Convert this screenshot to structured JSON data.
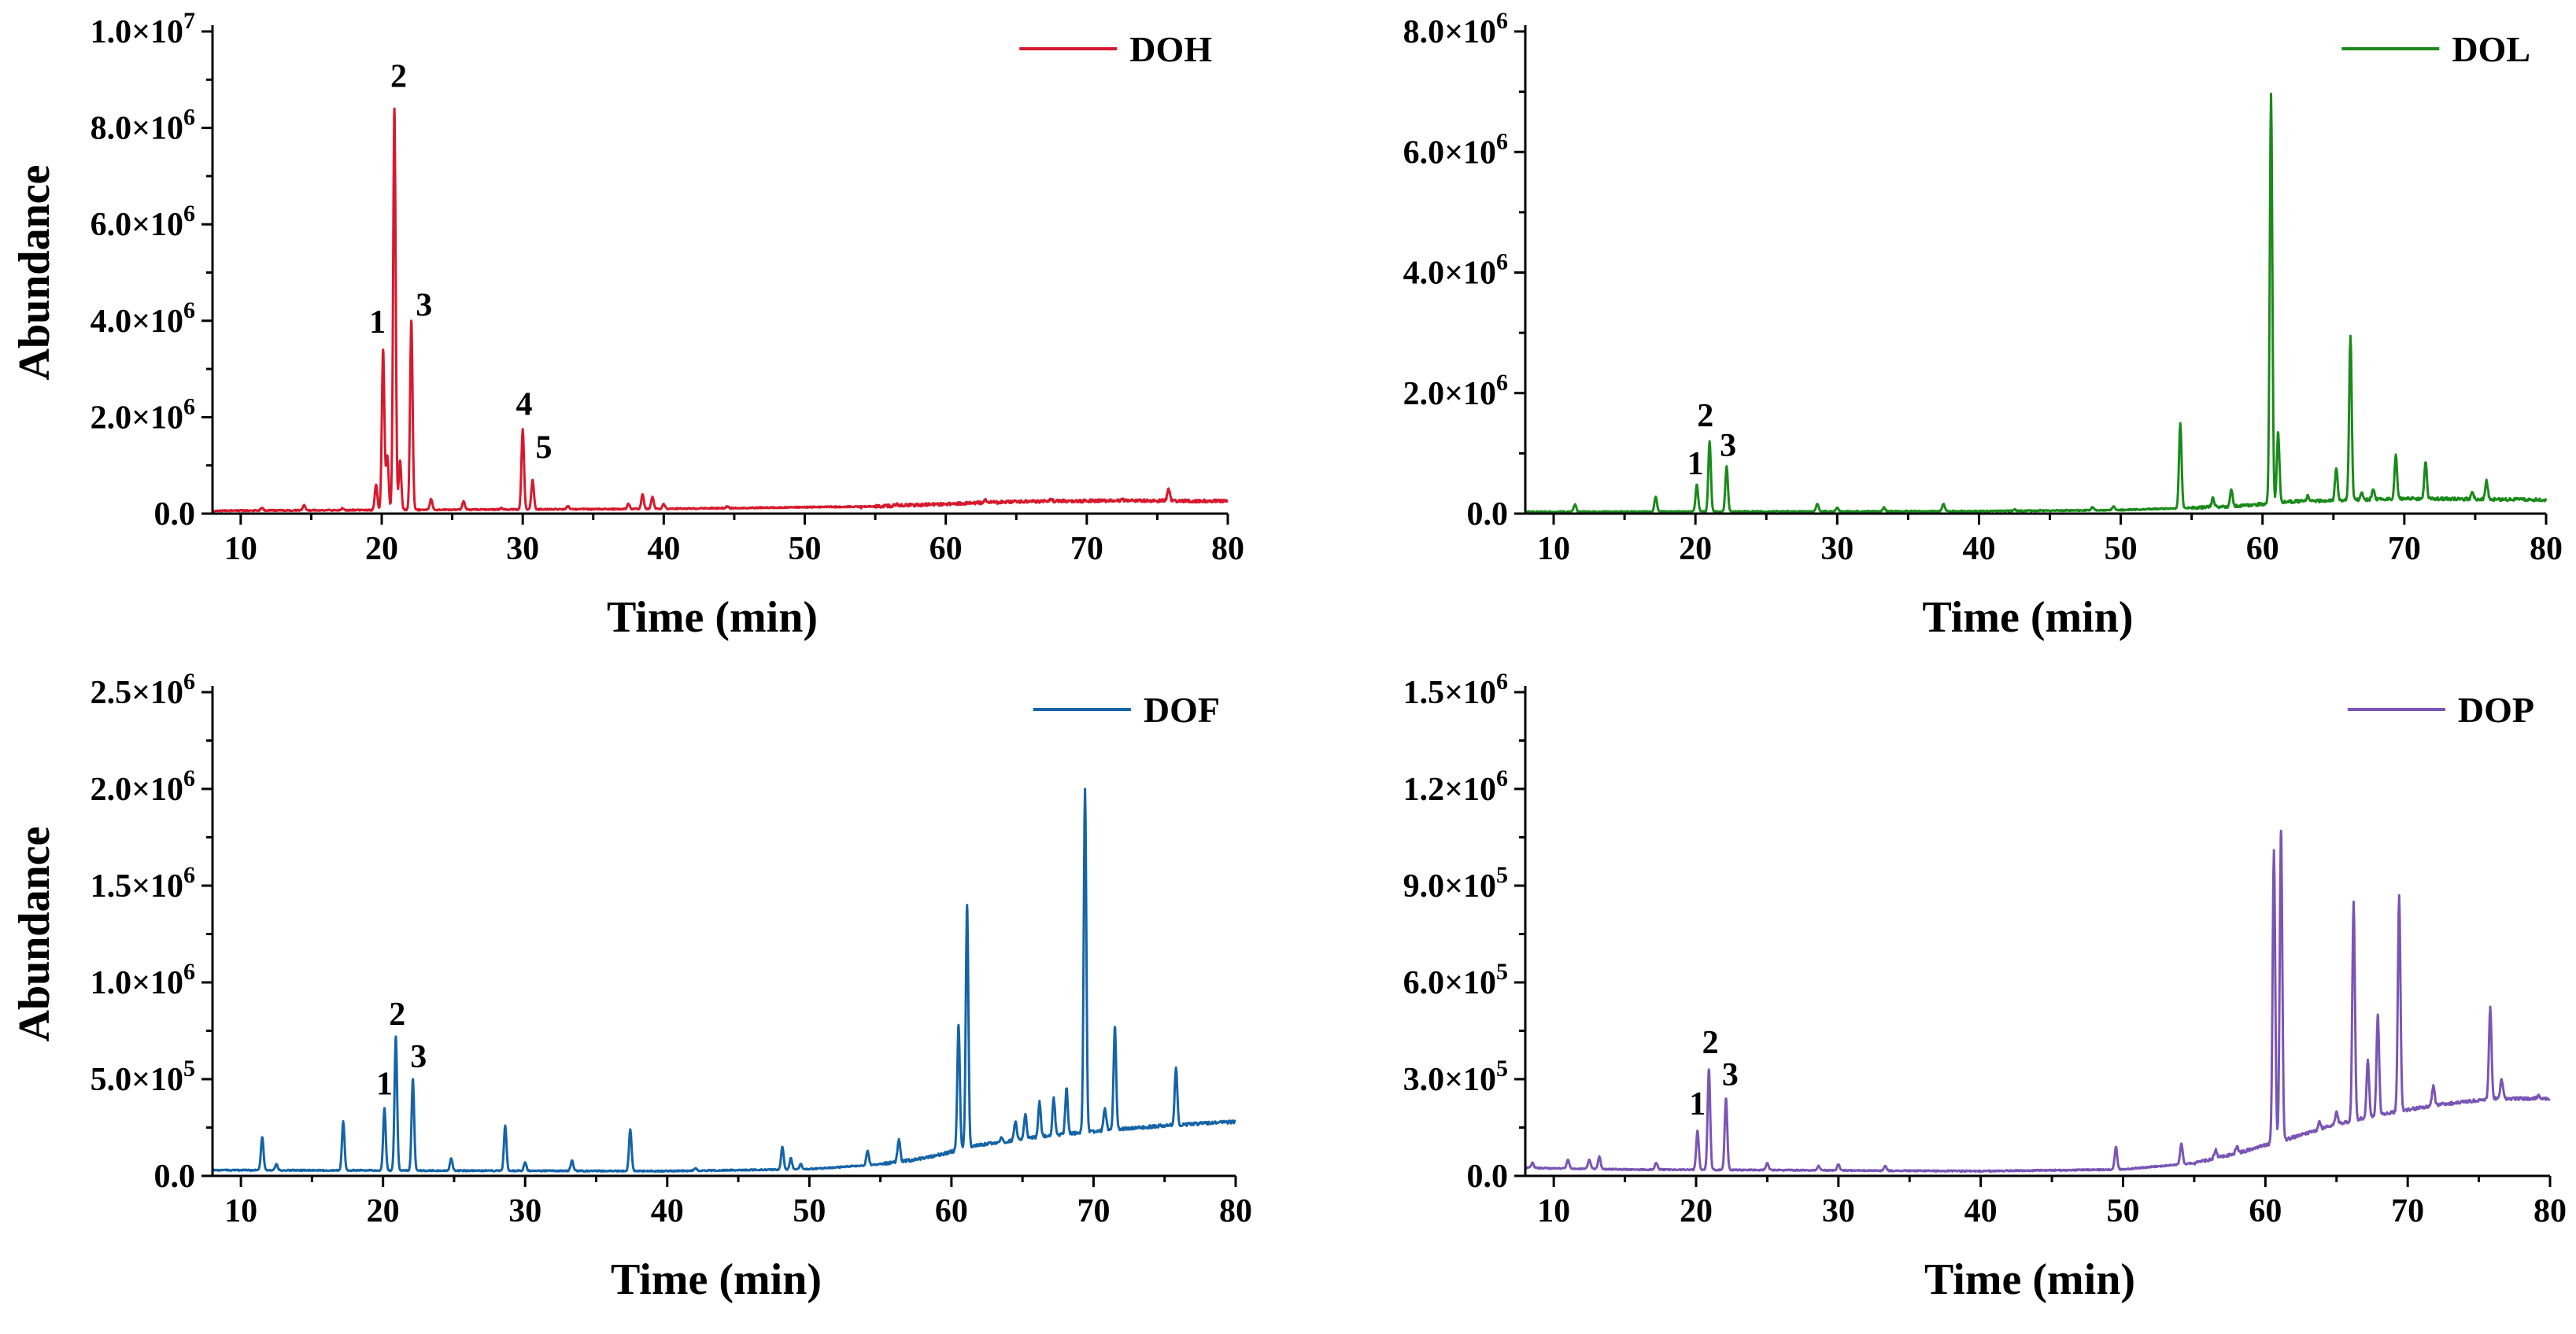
{
  "chart_data": [
    {
      "type": "line",
      "title": "",
      "xlabel": "Time (min)",
      "ylabel": "Abundance",
      "xlim": [
        8,
        80
      ],
      "ylim": [
        0,
        10000000
      ],
      "x_ticks": [
        10,
        20,
        30,
        40,
        50,
        60,
        70,
        80
      ],
      "y_ticks": [
        0,
        2000000,
        4000000,
        6000000,
        8000000,
        10000000
      ],
      "y_tick_labels": [
        {
          "mantissa": "0.0",
          "exp": ""
        },
        {
          "mantissa": "2.0×10",
          "exp": "6"
        },
        {
          "mantissa": "4.0×10",
          "exp": "6"
        },
        {
          "mantissa": "6.0×10",
          "exp": "6"
        },
        {
          "mantissa": "8.0×10",
          "exp": "6"
        },
        {
          "mantissa": "1.0×10",
          "exp": "7"
        }
      ],
      "series": [
        {
          "name": "DOH",
          "color": "#d7192d",
          "baseline": [
            [
              8,
              60000
            ],
            [
              40,
              100000
            ],
            [
              55,
              150000
            ],
            [
              65,
              250000
            ],
            [
              72,
              270000
            ],
            [
              80,
              260000
            ]
          ],
          "peaks": [
            [
              11.5,
              120000
            ],
            [
              14.5,
              180000
            ],
            [
              17.2,
              110000
            ],
            [
              19.6,
              600000
            ],
            [
              20.1,
              3400000
            ],
            [
              20.4,
              1200000
            ],
            [
              20.9,
              8400000
            ],
            [
              21.3,
              1100000
            ],
            [
              22.1,
              4000000
            ],
            [
              23.5,
              300000
            ],
            [
              25.8,
              250000
            ],
            [
              28.5,
              120000
            ],
            [
              30.0,
              1750000
            ],
            [
              30.7,
              700000
            ],
            [
              33.2,
              150000
            ],
            [
              37.5,
              200000
            ],
            [
              38.5,
              400000
            ],
            [
              39.2,
              350000
            ],
            [
              40.0,
              200000
            ],
            [
              44.5,
              150000
            ],
            [
              49.8,
              130000
            ],
            [
              54.0,
              110000
            ],
            [
              56.5,
              200000
            ],
            [
              58.0,
              180000
            ],
            [
              62.8,
              300000
            ],
            [
              67.5,
              300000
            ],
            [
              72.5,
              300000
            ],
            [
              75.8,
              520000
            ]
          ]
        }
      ],
      "annotations": [
        {
          "text": "1",
          "x": 19.7,
          "y": 3750000
        },
        {
          "text": "2",
          "x": 21.2,
          "y": 8850000
        },
        {
          "text": "3",
          "x": 23.0,
          "y": 4100000
        },
        {
          "text": "4",
          "x": 30.1,
          "y": 2050000
        },
        {
          "text": "5",
          "x": 31.5,
          "y": 1150000
        }
      ]
    },
    {
      "type": "line",
      "title": "",
      "xlabel": "Time (min)",
      "ylabel": "Abundance",
      "xlim": [
        8,
        80
      ],
      "ylim": [
        0,
        8000000
      ],
      "x_ticks": [
        10,
        20,
        30,
        40,
        50,
        60,
        70,
        80
      ],
      "y_ticks": [
        0,
        2000000,
        4000000,
        6000000,
        8000000
      ],
      "y_tick_labels": [
        {
          "mantissa": "0.0",
          "exp": ""
        },
        {
          "mantissa": "2.0×10",
          "exp": "6"
        },
        {
          "mantissa": "4.0×10",
          "exp": "6"
        },
        {
          "mantissa": "6.0×10",
          "exp": "6"
        },
        {
          "mantissa": "8.0×10",
          "exp": "6"
        }
      ],
      "series": [
        {
          "name": "DOL",
          "color": "#1a8a1a",
          "baseline": [
            [
              8,
              30000
            ],
            [
              40,
              40000
            ],
            [
              50,
              60000
            ],
            [
              58,
              120000
            ],
            [
              62,
              200000
            ],
            [
              70,
              250000
            ],
            [
              80,
              230000
            ]
          ],
          "peaks": [
            [
              11.5,
              150000
            ],
            [
              17.2,
              280000
            ],
            [
              20.1,
              480000
            ],
            [
              21.0,
              1200000
            ],
            [
              22.2,
              780000
            ],
            [
              28.6,
              160000
            ],
            [
              30.0,
              100000
            ],
            [
              33.3,
              100000
            ],
            [
              37.5,
              160000
            ],
            [
              42.5,
              70000
            ],
            [
              48.0,
              100000
            ],
            [
              49.5,
              120000
            ],
            [
              54.2,
              1500000
            ],
            [
              56.5,
              250000
            ],
            [
              57.8,
              400000
            ],
            [
              60.6,
              6950000
            ],
            [
              61.1,
              1350000
            ],
            [
              63.2,
              300000
            ],
            [
              65.2,
              750000
            ],
            [
              66.2,
              2950000
            ],
            [
              67.0,
              350000
            ],
            [
              67.8,
              400000
            ],
            [
              69.4,
              980000
            ],
            [
              71.5,
              850000
            ],
            [
              74.8,
              350000
            ],
            [
              75.8,
              550000
            ]
          ]
        }
      ],
      "annotations": [
        {
          "text": "1",
          "x": 20.0,
          "y": 650000
        },
        {
          "text": "2",
          "x": 20.7,
          "y": 1450000
        },
        {
          "text": "3",
          "x": 22.3,
          "y": 950000
        }
      ]
    },
    {
      "type": "line",
      "title": "",
      "xlabel": "Time (min)",
      "ylabel": "Abundance",
      "xlim": [
        8,
        80
      ],
      "ylim": [
        0,
        2500000
      ],
      "x_ticks": [
        10,
        20,
        30,
        40,
        50,
        60,
        70,
        80
      ],
      "y_ticks": [
        0,
        500000,
        1000000,
        1500000,
        2000000,
        2500000
      ],
      "y_tick_labels": [
        {
          "mantissa": "0.0",
          "exp": ""
        },
        {
          "mantissa": "5.0×10",
          "exp": "5"
        },
        {
          "mantissa": "1.0×10",
          "exp": "6"
        },
        {
          "mantissa": "1.5×10",
          "exp": "6"
        },
        {
          "mantissa": "2.0×10",
          "exp": "6"
        },
        {
          "mantissa": "2.5×10",
          "exp": "6"
        }
      ],
      "series": [
        {
          "name": "DOF",
          "color": "#1564a8",
          "baseline": [
            [
              8,
              30000
            ],
            [
              40,
              25000
            ],
            [
              50,
              35000
            ],
            [
              55,
              60000
            ],
            [
              58,
              90000
            ],
            [
              62,
              160000
            ],
            [
              66,
              200000
            ],
            [
              70,
              230000
            ],
            [
              75,
              260000
            ],
            [
              80,
              280000
            ]
          ],
          "peaks": [
            [
              11.5,
              200000
            ],
            [
              12.5,
              60000
            ],
            [
              17.2,
              280000
            ],
            [
              20.1,
              350000
            ],
            [
              20.9,
              720000
            ],
            [
              22.1,
              500000
            ],
            [
              24.8,
              90000
            ],
            [
              28.6,
              260000
            ],
            [
              30.0,
              70000
            ],
            [
              33.3,
              80000
            ],
            [
              37.4,
              240000
            ],
            [
              42.0,
              40000
            ],
            [
              48.1,
              150000
            ],
            [
              48.7,
              90000
            ],
            [
              49.4,
              60000
            ],
            [
              54.1,
              130000
            ],
            [
              56.3,
              190000
            ],
            [
              60.5,
              780000
            ],
            [
              61.1,
              1400000
            ],
            [
              63.5,
              200000
            ],
            [
              64.5,
              280000
            ],
            [
              65.2,
              320000
            ],
            [
              66.2,
              380000
            ],
            [
              67.2,
              400000
            ],
            [
              68.1,
              450000
            ],
            [
              69.4,
              2000000
            ],
            [
              70.8,
              350000
            ],
            [
              71.5,
              770000
            ],
            [
              75.8,
              560000
            ]
          ]
        }
      ],
      "annotations": [
        {
          "text": "1",
          "x": 20.1,
          "y": 420000
        },
        {
          "text": "2",
          "x": 21.0,
          "y": 780000
        },
        {
          "text": "3",
          "x": 22.5,
          "y": 560000
        }
      ]
    },
    {
      "type": "line",
      "title": "",
      "xlabel": "Time (min)",
      "ylabel": "Abundance",
      "xlim": [
        8,
        80
      ],
      "ylim": [
        0,
        1500000
      ],
      "x_ticks": [
        10,
        20,
        30,
        40,
        50,
        60,
        70,
        80
      ],
      "y_ticks": [
        0,
        300000,
        600000,
        900000,
        1200000,
        1500000
      ],
      "y_tick_labels": [
        {
          "mantissa": "0.0",
          "exp": ""
        },
        {
          "mantissa": "3.0×10",
          "exp": "5"
        },
        {
          "mantissa": "6.0×10",
          "exp": "5"
        },
        {
          "mantissa": "9.0×10",
          "exp": "5"
        },
        {
          "mantissa": "1.2×10",
          "exp": "6"
        },
        {
          "mantissa": "1.5×10",
          "exp": "6"
        }
      ],
      "series": [
        {
          "name": "DOP",
          "color": "#7a55b5",
          "baseline": [
            [
              8,
              25000
            ],
            [
              15,
              20000
            ],
            [
              40,
              15000
            ],
            [
              50,
              20000
            ],
            [
              55,
              40000
            ],
            [
              58,
              70000
            ],
            [
              62,
              120000
            ],
            [
              65,
              160000
            ],
            [
              68,
              190000
            ],
            [
              72,
              220000
            ],
            [
              76,
              240000
            ],
            [
              80,
              240000
            ]
          ],
          "peaks": [
            [
              8.5,
              40000
            ],
            [
              11.0,
              50000
            ],
            [
              12.5,
              50000
            ],
            [
              13.2,
              60000
            ],
            [
              17.2,
              40000
            ],
            [
              20.1,
              140000
            ],
            [
              20.9,
              330000
            ],
            [
              22.1,
              240000
            ],
            [
              25.0,
              40000
            ],
            [
              28.6,
              30000
            ],
            [
              30.0,
              35000
            ],
            [
              33.3,
              30000
            ],
            [
              49.5,
              90000
            ],
            [
              54.1,
              100000
            ],
            [
              56.5,
              80000
            ],
            [
              58.0,
              90000
            ],
            [
              60.6,
              1010000
            ],
            [
              61.1,
              1070000
            ],
            [
              63.8,
              170000
            ],
            [
              65.0,
              200000
            ],
            [
              66.2,
              850000
            ],
            [
              67.2,
              360000
            ],
            [
              67.9,
              500000
            ],
            [
              69.4,
              870000
            ],
            [
              71.8,
              280000
            ],
            [
              75.8,
              520000
            ],
            [
              76.6,
              300000
            ],
            [
              79.2,
              250000
            ]
          ]
        }
      ],
      "annotations": [
        {
          "text": "1",
          "x": 20.1,
          "y": 190000
        },
        {
          "text": "2",
          "x": 21.0,
          "y": 380000
        },
        {
          "text": "3",
          "x": 22.4,
          "y": 280000
        }
      ]
    }
  ]
}
